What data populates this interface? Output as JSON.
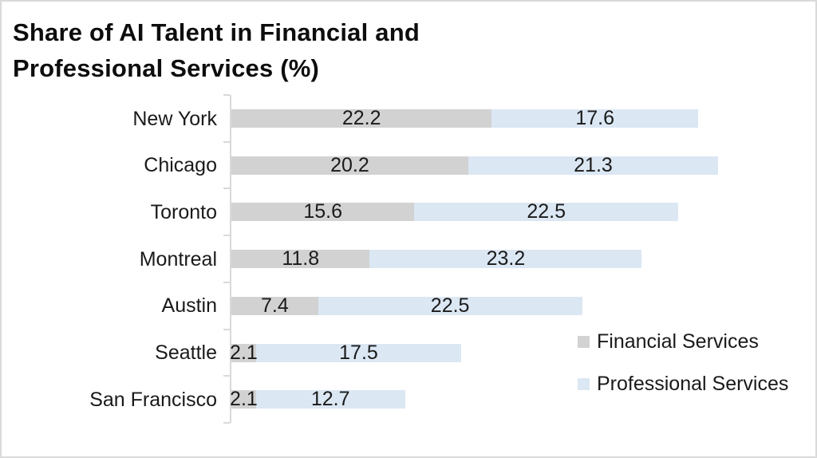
{
  "title": "Share of AI Talent in Financial and Professional Services (%)",
  "chart_data": {
    "type": "bar",
    "orientation": "horizontal",
    "stacked": true,
    "title": "Share of AI Talent in Financial and Professional Services (%)",
    "categories": [
      "New York",
      "Chicago",
      "Toronto",
      "Montreal",
      "Austin",
      "Seattle",
      "San Francisco"
    ],
    "series": [
      {
        "name": "Financial Services",
        "color": "#d2d2d2",
        "values": [
          22.2,
          20.2,
          15.6,
          11.8,
          7.4,
          2.1,
          2.1
        ]
      },
      {
        "name": "Professional Services",
        "color": "#dbe7f3",
        "values": [
          17.6,
          21.3,
          22.5,
          23.2,
          22.5,
          17.5,
          12.7
        ]
      }
    ],
    "xlabel": "",
    "ylabel": "",
    "xlim": [
      0,
      45
    ],
    "grid": false,
    "data_labels": true,
    "data_label_format": "one-decimal",
    "legend_position": "inside-bottom-right",
    "axis_color": "#d9d9d9",
    "text_color": "#1a1a1a"
  }
}
